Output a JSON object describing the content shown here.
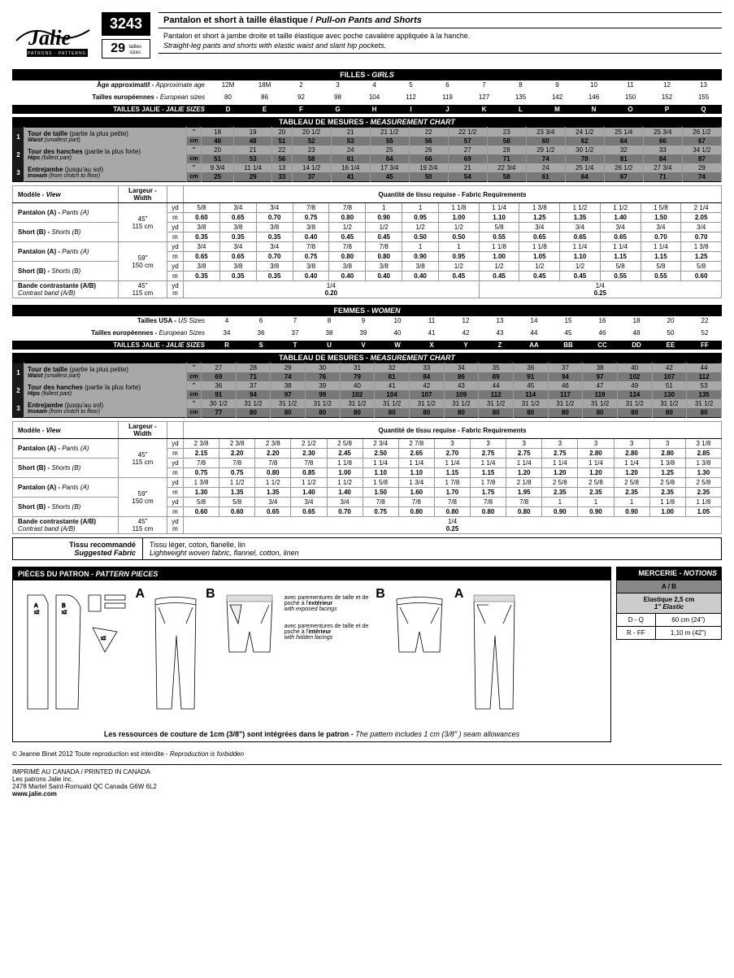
{
  "header": {
    "patternNumber": "3243",
    "sizesCount": "29",
    "sizesLabel": "tailles\nsizes",
    "logoText": "Jalie",
    "logoSub": "PATRONS · PATTERNS",
    "titleFr": "Pantalon et short à taille élastique / ",
    "titleEn": "Pull-on Pants and Shorts",
    "descFr": "Pantalon et short à jambe droite et taille élastique avec poche cavalière appliquée à la hanche.",
    "descEn": "Straight-leg pants and shorts with elastic waist and slant hip pockets."
  },
  "girls": {
    "sectionLabel": "FILLES - ",
    "sectionLabelIt": "GIRLS",
    "ageLabel": "Âge approximatif - ",
    "ageLabelIt": "Approximate age",
    "ages": [
      "12M",
      "18M",
      "2",
      "3",
      "4",
      "5",
      "6",
      "7",
      "8",
      "9",
      "10",
      "11",
      "12",
      "13"
    ],
    "euLabel": "Tailles européennes - ",
    "euLabelIt": "European sizes",
    "eu": [
      "80",
      "86",
      "92",
      "98",
      "104",
      "112",
      "119",
      "127",
      "135",
      "142",
      "146",
      "150",
      "152",
      "155"
    ],
    "jalieLabel": "TAILLES JALIE - ",
    "jalieLabelIt": "JALIE SIZES",
    "jalie": [
      "D",
      "E",
      "F",
      "G",
      "H",
      "I",
      "J",
      "K",
      "L",
      "M",
      "N",
      "O",
      "P",
      "Q"
    ],
    "measHdr": "TABLEAU DE MESURES - ",
    "measHdrIt": "MEASUREMENT CHART",
    "rows": [
      {
        "n": "1",
        "lblFr": "Tour de taille",
        "lblFrSub": "(partie la plus petite)",
        "lblEn": "Waist",
        "lblEnSub": "(smallest part)",
        "in": [
          "18",
          "19",
          "20",
          "20 1/2",
          "21",
          "21 1/2",
          "22",
          "22 1/2",
          "23",
          "23 3/4",
          "24 1/2",
          "25 1/4",
          "25 3/4",
          "26 1/2"
        ],
        "cm": [
          "46",
          "48",
          "51",
          "52",
          "53",
          "55",
          "56",
          "57",
          "58",
          "60",
          "62",
          "64",
          "66",
          "67"
        ]
      },
      {
        "n": "2",
        "lblFr": "Tour des hanches",
        "lblFrSub": "(partie la plus forte)",
        "lblEn": "Hips",
        "lblEnSub": "(fullest part)",
        "in": [
          "20",
          "21",
          "22",
          "23",
          "24",
          "25",
          "26",
          "27",
          "28",
          "29 1/2",
          "30 1/2",
          "32",
          "33",
          "34 1/2"
        ],
        "cm": [
          "51",
          "53",
          "56",
          "58",
          "61",
          "64",
          "66",
          "69",
          "71",
          "74",
          "78",
          "81",
          "84",
          "87"
        ]
      },
      {
        "n": "3",
        "lblFr": "Entrejambe",
        "lblFrSub": "(jusqu'au sol)",
        "lblEn": "Inseam",
        "lblEnSub": "(from crotch to floor)",
        "in": [
          "9 3/4",
          "11 1/4",
          "13",
          "14 1/2",
          "16 1/4",
          "17 3/4",
          "19 2/4",
          "21",
          "22 3/4",
          "24",
          "25 1/4",
          "26 1/2",
          "27 3/4",
          "29"
        ],
        "cm": [
          "25",
          "29",
          "33",
          "37",
          "41",
          "45",
          "50",
          "54",
          "58",
          "61",
          "64",
          "67",
          "71",
          "74"
        ]
      }
    ]
  },
  "girlsFabric": {
    "viewHdr": "Modèle - ",
    "viewHdrIt": "View",
    "widthHdr": "Largeur - ",
    "widthHdrIt": "Width",
    "reqHdr": "Quantité de tissu requise - ",
    "reqHdrIt": "Fabric Requirements",
    "rows": [
      {
        "view": "Pantalon (A) - ",
        "viewIt": "Pants (A)",
        "width": "45\"\n115 cm",
        "yd": [
          "5/8",
          "3/4",
          "3/4",
          "7/8",
          "7/8",
          "1",
          "1",
          "1 1/8",
          "1 1/4",
          "1 3/8",
          "1 1/2",
          "1 1/2",
          "1 5/8",
          "2 1/4"
        ],
        "m": [
          "0.60",
          "0.65",
          "0.70",
          "0.75",
          "0.80",
          "0.90",
          "0.95",
          "1.00",
          "1.10",
          "1.25",
          "1.35",
          "1.40",
          "1.50",
          "2.05"
        ]
      },
      {
        "view": "Short (B) - ",
        "viewIt": "Shorts (B)",
        "width": "",
        "yd": [
          "3/8",
          "3/8",
          "3/8",
          "3/8",
          "1/2",
          "1/2",
          "1/2",
          "1/2",
          "5/8",
          "3/4",
          "3/4",
          "3/4",
          "3/4",
          "3/4"
        ],
        "m": [
          "0.35",
          "0.35",
          "0.35",
          "0.40",
          "0.45",
          "0.45",
          "0.50",
          "0.50",
          "0.55",
          "0.65",
          "0.65",
          "0.65",
          "0.70",
          "0.70"
        ]
      },
      {
        "view": "Pantalon (A) - ",
        "viewIt": "Pants (A)",
        "width": "59\"\n150 cm",
        "yd": [
          "3/4",
          "3/4",
          "3/4",
          "7/8",
          "7/8",
          "7/8",
          "1",
          "1",
          "1 1/8",
          "1 1/8",
          "1 1/4",
          "1 1/4",
          "1 1/4",
          "1 3/8"
        ],
        "m": [
          "0.65",
          "0.65",
          "0.70",
          "0.75",
          "0.80",
          "0.80",
          "0.90",
          "0.95",
          "1.00",
          "1.05",
          "1.10",
          "1.15",
          "1.15",
          "1.25"
        ]
      },
      {
        "view": "Short (B) - ",
        "viewIt": "Shorts (B)",
        "width": "",
        "yd": [
          "3/8",
          "3/8",
          "3/8",
          "3/8",
          "3/8",
          "3/8",
          "3/8",
          "1/2",
          "1/2",
          "1/2",
          "1/2",
          "5/8",
          "5/8",
          "5/8"
        ],
        "m": [
          "0.35",
          "0.35",
          "0.35",
          "0.40",
          "0.40",
          "0.40",
          "0.40",
          "0.45",
          "0.45",
          "0.45",
          "0.45",
          "0.55",
          "0.55",
          "0.60"
        ]
      }
    ],
    "contrast": {
      "lbl": "Bande contrastante (A/B)",
      "lblIt": "Contrast band (A/B)",
      "w1": "45\"",
      "w2": "115 cm",
      "yd": "1/4",
      "m": "0.20",
      "yd2": "1/4",
      "m2": "0.25"
    }
  },
  "women": {
    "sectionLabel": "FEMMES - ",
    "sectionLabelIt": "WOMEN",
    "usLabel": "Tailles USA - ",
    "usLabelIt": "US Sizes",
    "us": [
      "4",
      "6",
      "7",
      "8",
      "9",
      "10",
      "11",
      "12",
      "13",
      "14",
      "15",
      "16",
      "18",
      "20",
      "22"
    ],
    "euLabel": "Tailles européennes - ",
    "euLabelIt": "European Sizes",
    "eu": [
      "34",
      "36",
      "37",
      "38",
      "39",
      "40",
      "41",
      "42",
      "43",
      "44",
      "45",
      "46",
      "48",
      "50",
      "52"
    ],
    "jalieLabel": "TAILLES JALIE - ",
    "jalieLabelIt": "JALIE SIZES",
    "jalie": [
      "R",
      "S",
      "T",
      "U",
      "V",
      "W",
      "X",
      "Y",
      "Z",
      "AA",
      "BB",
      "CC",
      "DD",
      "EE",
      "FF"
    ],
    "measHdr": "TABLEAU DE MESURES - ",
    "measHdrIt": "MEASUREMENT CHART",
    "rows": [
      {
        "n": "1",
        "lblFr": "Tour de taille",
        "lblFrSub": "(partie la plus petite)",
        "lblEn": "Waist",
        "lblEnSub": "(smallest part)",
        "in": [
          "27",
          "28",
          "29",
          "30",
          "31",
          "32",
          "33",
          "34",
          "35",
          "36",
          "37",
          "38",
          "40",
          "42",
          "44"
        ],
        "cm": [
          "69",
          "71",
          "74",
          "76",
          "79",
          "81",
          "84",
          "86",
          "89",
          "91",
          "94",
          "97",
          "102",
          "107",
          "112"
        ]
      },
      {
        "n": "2",
        "lblFr": "Tour des hanches",
        "lblFrSub": "(partie la plus forte)",
        "lblEn": "Hips",
        "lblEnSub": "(fullest part)",
        "in": [
          "36",
          "37",
          "38",
          "39",
          "40",
          "41",
          "42",
          "43",
          "44",
          "45",
          "46",
          "47",
          "49",
          "51",
          "53"
        ],
        "cm": [
          "91",
          "94",
          "97",
          "99",
          "102",
          "104",
          "107",
          "109",
          "112",
          "114",
          "117",
          "119",
          "124",
          "130",
          "135"
        ]
      },
      {
        "n": "3",
        "lblFr": "Entrejambe",
        "lblFrSub": "(jusqu'au sol)",
        "lblEn": "Inseam",
        "lblEnSub": "(from crotch to floor)",
        "in": [
          "30 1/2",
          "31 1/2",
          "31 1/2",
          "31 1/2",
          "31 1/2",
          "31 1/2",
          "31 1/2",
          "31 1/2",
          "31 1/2",
          "31 1/2",
          "31 1/2",
          "31 1/2",
          "31 1/2",
          "31 1/2",
          "31 1/2"
        ],
        "cm": [
          "77",
          "80",
          "80",
          "80",
          "80",
          "80",
          "80",
          "80",
          "80",
          "80",
          "80",
          "80",
          "80",
          "80",
          "80"
        ]
      }
    ]
  },
  "womenFabric": {
    "viewHdr": "Modèle - ",
    "viewHdrIt": "View",
    "widthHdr": "Largeur - ",
    "widthHdrIt": "Width",
    "reqHdr": "Quantité de tissu requise - ",
    "reqHdrIt": "Fabric Requirements",
    "rows": [
      {
        "view": "Pantalon (A) - ",
        "viewIt": "Pants (A)",
        "width": "45\"\n115 cm",
        "yd": [
          "2 3/8",
          "2 3/8",
          "2 3/8",
          "2 1/2",
          "2 5/8",
          "2 3/4",
          "2 7/8",
          "3",
          "3",
          "3",
          "3",
          "3",
          "3",
          "3",
          "3 1/8"
        ],
        "m": [
          "2.15",
          "2.20",
          "2.20",
          "2.30",
          "2.45",
          "2.50",
          "2.65",
          "2.70",
          "2.75",
          "2.75",
          "2.75",
          "2.80",
          "2.80",
          "2.80",
          "2.85"
        ]
      },
      {
        "view": "Short (B) - ",
        "viewIt": "Shorts (B)",
        "width": "",
        "yd": [
          "7/8",
          "7/8",
          "7/8",
          "7/8",
          "1 1/8",
          "1 1/4",
          "1 1/4",
          "1 1/4",
          "1 1/4",
          "1 1/4",
          "1 1/4",
          "1 1/4",
          "1 1/4",
          "1 3/8",
          "1 3/8"
        ],
        "m": [
          "0.75",
          "0.75",
          "0.80",
          "0.85",
          "1.00",
          "1.10",
          "1.10",
          "1.15",
          "1.15",
          "1.20",
          "1.20",
          "1.20",
          "1.20",
          "1.25",
          "1.30"
        ]
      },
      {
        "view": "Pantalon (A) - ",
        "viewIt": "Pants (A)",
        "width": "59\"\n150 cm",
        "yd": [
          "1 3/8",
          "1 1/2",
          "1 1/2",
          "1 1/2",
          "1 1/2",
          "1 5/8",
          "1 3/4",
          "1 7/8",
          "1 7/8",
          "2 1/8",
          "2 5/8",
          "2 5/8",
          "2 5/8",
          "2 5/8",
          "2 5/8"
        ],
        "m": [
          "1.30",
          "1.35",
          "1.35",
          "1.40",
          "1.40",
          "1.50",
          "1.60",
          "1.70",
          "1.75",
          "1.95",
          "2.35",
          "2.35",
          "2.35",
          "2.35",
          "2.35"
        ]
      },
      {
        "view": "Short (B) - ",
        "viewIt": "Shorts (B)",
        "width": "",
        "yd": [
          "5/8",
          "5/8",
          "3/4",
          "3/4",
          "3/4",
          "7/8",
          "7/8",
          "7/8",
          "7/8",
          "7/8",
          "1",
          "1",
          "1",
          "1 1/8",
          "1 1/8"
        ],
        "m": [
          "0.60",
          "0.60",
          "0.65",
          "0.65",
          "0.70",
          "0.75",
          "0.80",
          "0.80",
          "0.80",
          "0.80",
          "0.90",
          "0.90",
          "0.90",
          "1.00",
          "1.05"
        ]
      }
    ],
    "contrast": {
      "lbl": "Bande contrastante (A/B)",
      "lblIt": "Contrast band (A/B)",
      "w1": "45\"",
      "w2": "115 cm",
      "yd": "1/4",
      "m": "0.25"
    }
  },
  "fabricRec": {
    "lblFr": "Tissu recommandé",
    "lblEn": "Suggested Fabric",
    "txtFr": "Tissu léger, coton, flanelle, lin",
    "txtEn": "Lightweight woven fabric, flannel, cotton, linen"
  },
  "pieces": {
    "hdrFr": "PIÈCES DU PATRON - ",
    "hdrIt": "PATTERN PIECES",
    "labelA": "A",
    "labelB": "B",
    "note1Fr": "avec parementures de taille\net de poche à l'",
    "note1B": "extérieur",
    "note1En": "with exposed facings",
    "note2Fr": "avec parementures de taille\net de poche à l'",
    "note2B": "intérieur",
    "note2En": "with hidden facings",
    "seamFr": "Les ressources de couture de 1cm (3/8\") sont intégrées dans le patron - ",
    "seamEn": "The pattern includes 1 cm (3/8\" ) seam allowances"
  },
  "notions": {
    "hdrFr": "MERCERIE - ",
    "hdrIt": "NOTIONS",
    "ab": "A / B",
    "elasticFr": "Elastique 2,5 cm",
    "elasticEn": "1\" Elastic",
    "r1a": "D - Q",
    "r1b": "60 cm (24\")",
    "r2a": "R - FF",
    "r2b": "1,10 m (42\")"
  },
  "footer": {
    "copyright": "© Jeanne Binet 2012  Toute reproduction est interdite - ",
    "copyrightIt": "Reproduction is forbidden",
    "printed": "IMPRIMÉ AU CANADA / PRINTED IN CANADA",
    "company": "Les patrons Jalie inc.",
    "address": "2478 Martel  Saint-Romuald  QC  Canada  G6W 6L2",
    "url": "www.jalie.com"
  }
}
